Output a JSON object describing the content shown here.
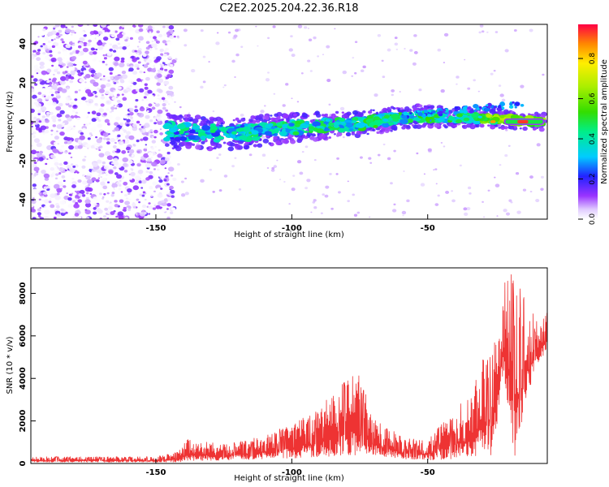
{
  "title": "C2E2.2025.204.22.36.R18",
  "chart_data": [
    {
      "type": "heatmap",
      "xlabel": "Height of straight line (km)",
      "ylabel": "Frequency (Hz)",
      "xlim": [
        -196,
        -6
      ],
      "ylim": [
        -50,
        50
      ],
      "xticks": [
        -150,
        -100,
        -50
      ],
      "yticks": [
        -40,
        -20,
        0,
        20,
        40
      ],
      "grid": false,
      "colorbar": {
        "label": "Normalized spectral amplitude",
        "range": [
          0,
          0.97
        ],
        "ticks": [
          0.0,
          0.2,
          0.4,
          0.6,
          0.8
        ]
      },
      "ridge": {
        "description_points": [
          {
            "x": -145,
            "freq": -5
          },
          {
            "x": -120,
            "freq": -6
          },
          {
            "x": -100,
            "freq": -3
          },
          {
            "x": -75,
            "freq": -1
          },
          {
            "x": -55,
            "freq": 3
          },
          {
            "x": -30,
            "freq": 2
          },
          {
            "x": -20,
            "freq": 1
          },
          {
            "x": -8,
            "freq": 0
          }
        ],
        "noise_region_xmax": -143
      }
    },
    {
      "type": "line",
      "xlabel": "Height of straight line (km)",
      "ylabel": "SNR (10 * v/v)",
      "xlim": [
        -196,
        -6
      ],
      "ylim": [
        0,
        9200
      ],
      "xticks": [
        -150,
        -100,
        -50
      ],
      "yticks": [
        0,
        2000,
        4000,
        6000,
        8000
      ],
      "grid": false,
      "color": "#ee3333",
      "envelope": [
        {
          "x": -196,
          "lo": 60,
          "hi": 320
        },
        {
          "x": -150,
          "lo": 60,
          "hi": 320
        },
        {
          "x": -142,
          "lo": 60,
          "hi": 550
        },
        {
          "x": -138,
          "lo": 120,
          "hi": 1200
        },
        {
          "x": -125,
          "lo": 150,
          "hi": 900
        },
        {
          "x": -110,
          "lo": 200,
          "hi": 1300
        },
        {
          "x": -100,
          "lo": 250,
          "hi": 1900
        },
        {
          "x": -90,
          "lo": 300,
          "hi": 2600
        },
        {
          "x": -82,
          "lo": 300,
          "hi": 3700
        },
        {
          "x": -76,
          "lo": 400,
          "hi": 4500
        },
        {
          "x": -70,
          "lo": 350,
          "hi": 2200
        },
        {
          "x": -60,
          "lo": 200,
          "hi": 1300
        },
        {
          "x": -50,
          "lo": 150,
          "hi": 1100
        },
        {
          "x": -42,
          "lo": 200,
          "hi": 2300
        },
        {
          "x": -34,
          "lo": 300,
          "hi": 3300
        },
        {
          "x": -30,
          "lo": 400,
          "hi": 4900
        },
        {
          "x": -26,
          "lo": 400,
          "hi": 5400
        },
        {
          "x": -22,
          "lo": 4200,
          "hi": 8500
        },
        {
          "x": -18,
          "lo": 300,
          "hi": 9200
        },
        {
          "x": -14,
          "lo": 2800,
          "hi": 7600
        },
        {
          "x": -10,
          "lo": 4600,
          "hi": 6900
        },
        {
          "x": -6,
          "lo": 5200,
          "hi": 7200
        }
      ]
    }
  ]
}
